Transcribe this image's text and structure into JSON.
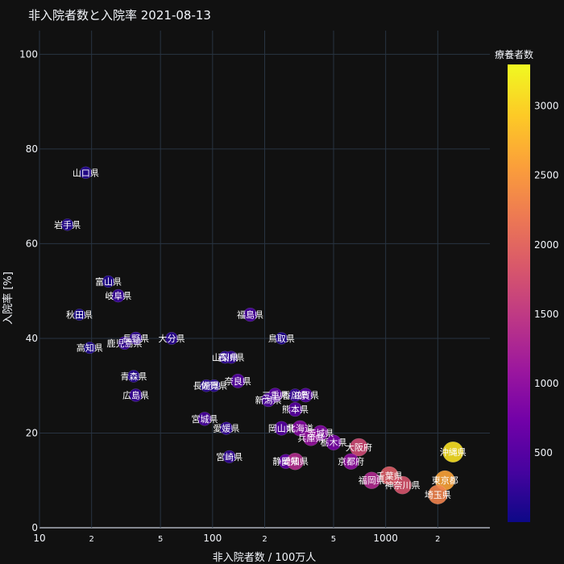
{
  "chart_data": {
    "type": "scatter",
    "title": "非入院者数と入院率 2021-08-13",
    "xlabel": "非入院者数 / 100万人",
    "ylabel": "入院率 [%]",
    "xscale": "log",
    "xlim": [
      10,
      4000
    ],
    "ylim": [
      0,
      105
    ],
    "x_ticks": [
      {
        "value": 10,
        "label": "10"
      },
      {
        "value": 20,
        "label": "2"
      },
      {
        "value": 50,
        "label": "5"
      },
      {
        "value": 100,
        "label": "100"
      },
      {
        "value": 200,
        "label": "2"
      },
      {
        "value": 500,
        "label": "5"
      },
      {
        "value": 1000,
        "label": "1000"
      },
      {
        "value": 2000,
        "label": "2"
      }
    ],
    "y_ticks": [
      0,
      20,
      40,
      60,
      80,
      100
    ],
    "grid": true,
    "colorbar": {
      "title": "療養者数",
      "min": 0,
      "max": 3300,
      "ticks": [
        500,
        1000,
        1500,
        2000,
        2500,
        3000
      ],
      "colorscale": [
        "#0d0887",
        "#46039f",
        "#7201a8",
        "#9c179e",
        "#bd3786",
        "#d8576b",
        "#ed7953",
        "#fb9f3a",
        "#fdca26",
        "#f0f921"
      ]
    },
    "points": [
      {
        "label": "山口県",
        "x": 18.5,
        "y": 75,
        "c": 150
      },
      {
        "label": "岩手県",
        "x": 14.5,
        "y": 64,
        "c": 140
      },
      {
        "label": "富山県",
        "x": 25,
        "y": 52,
        "c": 130
      },
      {
        "label": "岐阜県",
        "x": 28.5,
        "y": 49,
        "c": 280
      },
      {
        "label": "秋田県",
        "x": 17,
        "y": 45,
        "c": 100
      },
      {
        "label": "福島県",
        "x": 165,
        "y": 45,
        "c": 400
      },
      {
        "label": "長野県",
        "x": 36,
        "y": 40,
        "c": 250
      },
      {
        "label": "大分県",
        "x": 58,
        "y": 40,
        "c": 200
      },
      {
        "label": "鳥取県",
        "x": 250,
        "y": 40,
        "c": 150
      },
      {
        "label": "鹿児島県",
        "x": 31,
        "y": 39,
        "c": 280
      },
      {
        "label": "高知県",
        "x": 19.5,
        "y": 38,
        "c": 110
      },
      {
        "label": "山梨県",
        "x": 118,
        "y": 36,
        "c": 190
      },
      {
        "label": "石川県",
        "x": 128,
        "y": 36,
        "c": 230
      },
      {
        "label": "青森県",
        "x": 35,
        "y": 32,
        "c": 160
      },
      {
        "label": "奈良県",
        "x": 140,
        "y": 31,
        "c": 480
      },
      {
        "label": "長崎県",
        "x": 92,
        "y": 30,
        "c": 180
      },
      {
        "label": "佐賀県",
        "x": 102,
        "y": 30,
        "c": 170
      },
      {
        "label": "広島県",
        "x": 36,
        "y": 28,
        "c": 270
      },
      {
        "label": "三重県",
        "x": 230,
        "y": 28,
        "c": 550
      },
      {
        "label": "香川県",
        "x": 300,
        "y": 28,
        "c": 260
      },
      {
        "label": "滋賀県",
        "x": 345,
        "y": 28,
        "c": 480
      },
      {
        "label": "新潟県",
        "x": 210,
        "y": 27,
        "c": 450
      },
      {
        "label": "熊本県",
        "x": 300,
        "y": 25,
        "c": 530
      },
      {
        "label": "宮城県",
        "x": 90,
        "y": 23,
        "c": 390
      },
      {
        "label": "愛媛県",
        "x": 120,
        "y": 21,
        "c": 240
      },
      {
        "label": "岡山県",
        "x": 250,
        "y": 21,
        "c": 500
      },
      {
        "label": "北海道",
        "x": 320,
        "y": 21,
        "c": 900
      },
      {
        "label": "茨城県",
        "x": 420,
        "y": 20,
        "c": 880
      },
      {
        "label": "兵庫県",
        "x": 370,
        "y": 19,
        "c": 1050
      },
      {
        "label": "栃木県",
        "x": 500,
        "y": 18,
        "c": 800
      },
      {
        "label": "大阪府",
        "x": 700,
        "y": 17,
        "c": 1700
      },
      {
        "label": "沖縄県",
        "x": 2450,
        "y": 16,
        "c": 3100
      },
      {
        "label": "宮崎県",
        "x": 125,
        "y": 15,
        "c": 230
      },
      {
        "label": "京都府",
        "x": 630,
        "y": 14,
        "c": 1000
      },
      {
        "label": "静岡県",
        "x": 265,
        "y": 14,
        "c": 580
      },
      {
        "label": "愛知県",
        "x": 300,
        "y": 14,
        "c": 1350
      },
      {
        "label": "福岡県",
        "x": 830,
        "y": 10,
        "c": 1320
      },
      {
        "label": "千葉県",
        "x": 1050,
        "y": 11,
        "c": 1900
      },
      {
        "label": "神奈川県",
        "x": 1250,
        "y": 9,
        "c": 1800
      },
      {
        "label": "東京都",
        "x": 2200,
        "y": 10,
        "c": 2600
      },
      {
        "label": "埼玉県",
        "x": 2000,
        "y": 7,
        "c": 2300
      }
    ]
  }
}
